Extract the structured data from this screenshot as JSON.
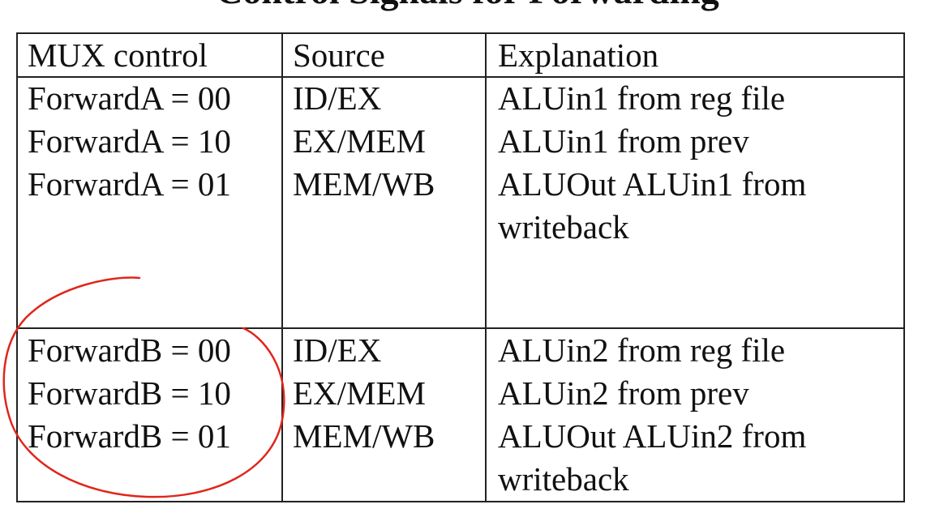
{
  "slide": {
    "title": "Control Signals for Forwarding"
  },
  "table": {
    "headers": {
      "mux": "MUX control",
      "source": "Source",
      "explanation": "Explanation"
    },
    "group_a": {
      "mux": "ForwardA = 00\nForwardA = 10\nForwardA = 01",
      "source": "ID/EX\nEX/MEM\nMEM/WB",
      "explanation": "ALUin1 from reg file\nALUin1 from prev\nALUOut ALUin1 from\nwriteback"
    },
    "group_b": {
      "mux": "ForwardB = 00\nForwardB = 10\nForwardB = 01",
      "source": "ID/EX\nEX/MEM\nMEM/WB",
      "explanation": "ALUin2 from reg file\nALUin2 from prev\nALUOut ALUin2 from\nwriteback"
    }
  },
  "annotation": {
    "color": "#e0261b",
    "shape": "hand-drawn circle around ForwardB rows"
  }
}
